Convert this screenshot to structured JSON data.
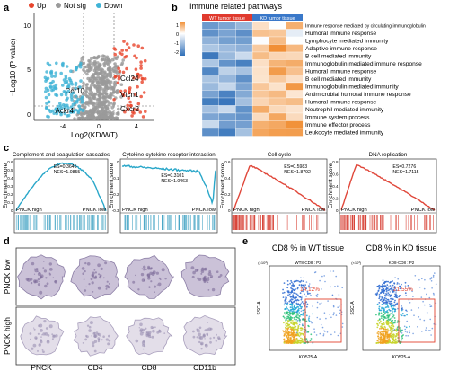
{
  "panels": {
    "a": {
      "letter": "a",
      "legend": [
        {
          "label": "Up",
          "color": "#e8452c"
        },
        {
          "label": "Not sig",
          "color": "#9a9a9a"
        },
        {
          "label": "Down",
          "color": "#3fb3d6"
        }
      ],
      "ylabel": "−Log10 (P value)",
      "xlabel": "Log2(KD/WT)",
      "yticks": [
        "10",
        "5",
        "0"
      ],
      "xticks": [
        "-4",
        "0",
        "4"
      ],
      "gene_labels": [
        "Ccl24",
        "Vtcn1",
        "Ccr10",
        "Ackr4",
        "Cxcr2"
      ]
    },
    "b": {
      "letter": "b",
      "title": "Immune related pathways",
      "group_wt": "WT tumor tissue",
      "group_kd": "KD tumor tissue",
      "scale_ticks": [
        "1",
        "0",
        "-1",
        "-2"
      ],
      "pathways": [
        "Immune response mediated by circulating immunoglobulin",
        "Humoral immune response",
        "Lymphocyte mediated immunity",
        "Adaptive immune response",
        "B cell mediated immunity",
        "Immunoglobulin mediated immune response",
        "Humoral immune response",
        "B cell mediated immunity",
        "Immunoglobulin mediated immunity",
        "Antimicrobial humoral immune response",
        "Humoral immune response",
        "Neutrophil mediated immunity",
        "Immune system process",
        "Immune effector process",
        "Leukocyte mediated immunity"
      ]
    },
    "c": {
      "letter": "c",
      "ylabel": "Enrichment score",
      "plots": [
        {
          "title": "Complement and coagulation cascades",
          "es": "ES=0.3645",
          "nes": "NES=1.0855",
          "left": "PNCK high",
          "right": "PNCK low",
          "yticks": [
            "0.6",
            "0.5",
            "0.4",
            "0.3",
            "0.2",
            "0.1",
            "0"
          ],
          "color": "#2aa7c9"
        },
        {
          "title": "Cytokine-cytokine receptor interaction",
          "es": "ES=0.3101",
          "nes": "NES=1.0463",
          "left": "PNCK high",
          "right": "PNCK low",
          "yticks": [
            "0",
            "-0.1",
            "-0.2",
            "-0.3"
          ],
          "color": "#2aa7c9"
        },
        {
          "title": "Cell cycle",
          "es": "ES=0.5983",
          "nes": "NES=1.8792",
          "left": "PNCK high",
          "right": "PNCK low",
          "yticks": [
            "0.6",
            "0.4",
            "0.2",
            "0"
          ],
          "color": "#e0473a"
        },
        {
          "title": "DNA replication",
          "es": "ES=0.7276",
          "nes": "NES=1.7115",
          "left": "PNCK high",
          "right": "PNCK low",
          "yticks": [
            "0.8",
            "0.6",
            "0.4",
            "0.2",
            "0"
          ],
          "color": "#e0473a"
        }
      ]
    },
    "d": {
      "letter": "d",
      "row_labels": [
        "PNCK low",
        "PNCK high"
      ],
      "col_labels": [
        "PNCK",
        "CD4",
        "CD8",
        "CD11b"
      ]
    },
    "e": {
      "letter": "e",
      "plots": [
        {
          "title": "CD8 % in WT tissue",
          "subtitle": "WT8-CD8 : P2",
          "gate": "14.12%",
          "ylabel": "SSC-A",
          "xlabel": "KO525-A",
          "yexp": "(×10³)"
        },
        {
          "title": "CD8 % in KD tissue",
          "subtitle": "KD8-CD8 : P2",
          "gate": "21.55%",
          "ylabel": "SSC-A",
          "xlabel": "KO525-A",
          "yexp": "(×10³)"
        }
      ]
    }
  }
}
